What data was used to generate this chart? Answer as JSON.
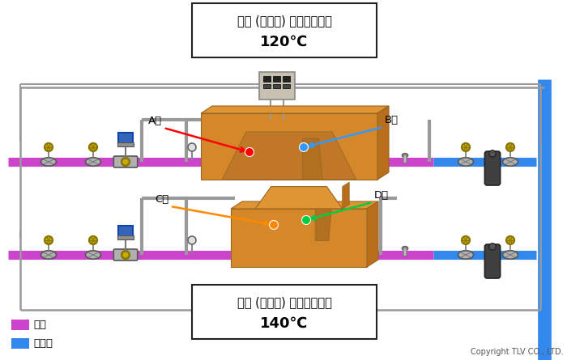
{
  "title_top": "上型 (低温側) 設定成型温度",
  "temp_top": "120℃",
  "title_bottom": "下型 (高温側) 設定成型温度",
  "temp_bottom": "140℃",
  "legend_steam": "蒸気",
  "legend_drain": "ドレン",
  "copyright": "Copyright TLV CO., LTD.",
  "label_A": "A部",
  "label_B": "B部",
  "label_C": "C部",
  "label_D": "D部",
  "steam_color": "#cc44cc",
  "drain_color": "#3388ee",
  "pipe_gray": "#999999",
  "mold_front": "#d4882a",
  "mold_top_face": "#e09535",
  "mold_right_face": "#b86e1a",
  "mold_inner": "#c07828",
  "bg_color": "#ffffff",
  "box_edge": "#222222",
  "valve_body": "#b0b0b0",
  "valve_edge": "#555555",
  "wheel_color": "#ccaa00",
  "wheel_edge": "#887700",
  "actuator_blue": "#3366bb",
  "actuator_edge": "#1144aa",
  "trap_color": "#404040",
  "ctrl_color": "#c8c0b0",
  "ctrl_edge": "#888888"
}
